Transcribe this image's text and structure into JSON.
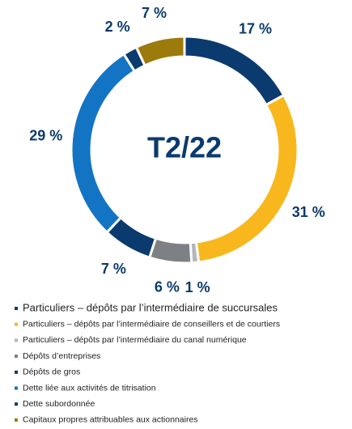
{
  "chart_data": {
    "type": "pie",
    "center_label": "T2/22",
    "categories": [
      "Particuliers – dépôts par l’intermédiaire de succursales",
      "Particuliers – dépôts par l’intermédiaire de conseillers et de courtiers",
      "Particuliers – dépôts par l’intermédiaire du canal numérique",
      "Dépôts d’entreprises",
      "Dépôts de gros",
      "Dette liée aux activités de titrisation",
      "Dette subordonnée",
      "Capitaux propres attribuables aux actionnaires"
    ],
    "values": [
      17,
      31,
      1,
      6,
      7,
      29,
      2,
      7
    ],
    "value_labels": [
      "17 %",
      "31 %",
      "1 %",
      "6 %",
      "7 %",
      "29 %",
      "2 %",
      "7 %"
    ],
    "colors": [
      "#0b3a6e",
      "#f8b71c",
      "#b3b6bb",
      "#7d8085",
      "#0b3a6e",
      "#1474c4",
      "#0b3a6e",
      "#9c7a0c"
    ]
  }
}
